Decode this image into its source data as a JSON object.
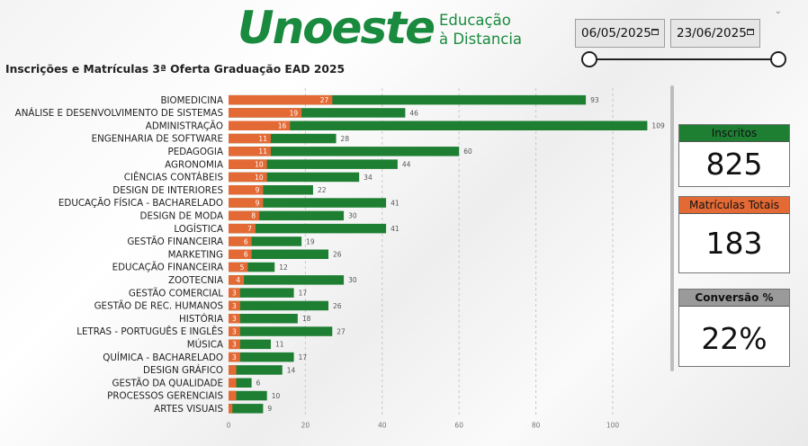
{
  "header": {
    "logo_word": "Unoeste",
    "logo_line1": "Educação",
    "logo_line2": "à Distancia"
  },
  "filters": {
    "start_date": "06/05/2025",
    "end_date": "23/06/2025",
    "slider_start": 0,
    "slider_end": 1
  },
  "title": "Inscrições e Matrículas 3ª Oferta Graduação EAD 2025",
  "cards": {
    "inscritos_label": "Inscritos",
    "inscritos_value": "825",
    "matriculas_label": "Matrículas Totais",
    "matriculas_value": "183",
    "conversao_label": "Conversão %",
    "conversao_value": "22%"
  },
  "colors": {
    "green": "#1e7f33",
    "orange": "#e46a35",
    "brand_green": "#1a8a3e",
    "gridline": "#c8c8c8"
  },
  "chart_data": {
    "type": "bar",
    "orientation": "horizontal",
    "stacked_overlay": true,
    "xlim": [
      0,
      110
    ],
    "x_ticks": [
      0,
      20,
      40,
      60,
      80,
      100
    ],
    "categories": [
      "BIOMEDICINA",
      "ANÁLISE E DESENVOLVIMENTO DE SISTEMAS",
      "ADMINISTRAÇÃO",
      "ENGENHARIA DE SOFTWARE",
      "PEDAGOGIA",
      "AGRONOMIA",
      "CIÊNCIAS CONTÁBEIS",
      "DESIGN DE INTERIORES",
      "EDUCAÇÃO FÍSICA - BACHARELADO",
      "DESIGN DE MODA",
      "LOGÍSTICA",
      "GESTÃO FINANCEIRA",
      "MARKETING",
      "EDUCAÇÃO FINANCEIRA",
      "ZOOTECNIA",
      "GESTÃO COMERCIAL",
      "GESTÃO DE REC. HUMANOS",
      "HISTÓRIA",
      "LETRAS - PORTUGUÊS E INGLÊS",
      "MÚSICA",
      "QUÍMICA - BACHARELADO",
      "DESIGN GRÁFICO",
      "GESTÃO DA QUALIDADE",
      "PROCESSOS GERENCIAIS",
      "ARTES VISUAIS"
    ],
    "series": [
      {
        "name": "",
        "values": [
          93,
          46,
          109,
          28,
          60,
          44,
          34,
          22,
          41,
          30,
          41,
          19,
          26,
          12,
          30,
          17,
          26,
          18,
          27,
          11,
          17,
          14,
          6,
          10,
          9
        ]
      },
      {
        "name": "",
        "values": [
          27,
          19,
          16,
          11,
          11,
          10,
          10,
          9,
          9,
          8,
          7,
          6,
          6,
          5,
          4,
          3,
          3,
          3,
          3,
          3,
          3,
          2,
          2,
          2,
          1
        ]
      }
    ],
    "inner_labels": [
      "27",
      "19",
      "16",
      "11",
      "11",
      "10",
      "10",
      "9",
      "9",
      "8",
      "7",
      "6",
      "6",
      "5",
      "4",
      "3",
      "3",
      "3",
      "3",
      "3",
      "3",
      "",
      "",
      "",
      ""
    ]
  }
}
